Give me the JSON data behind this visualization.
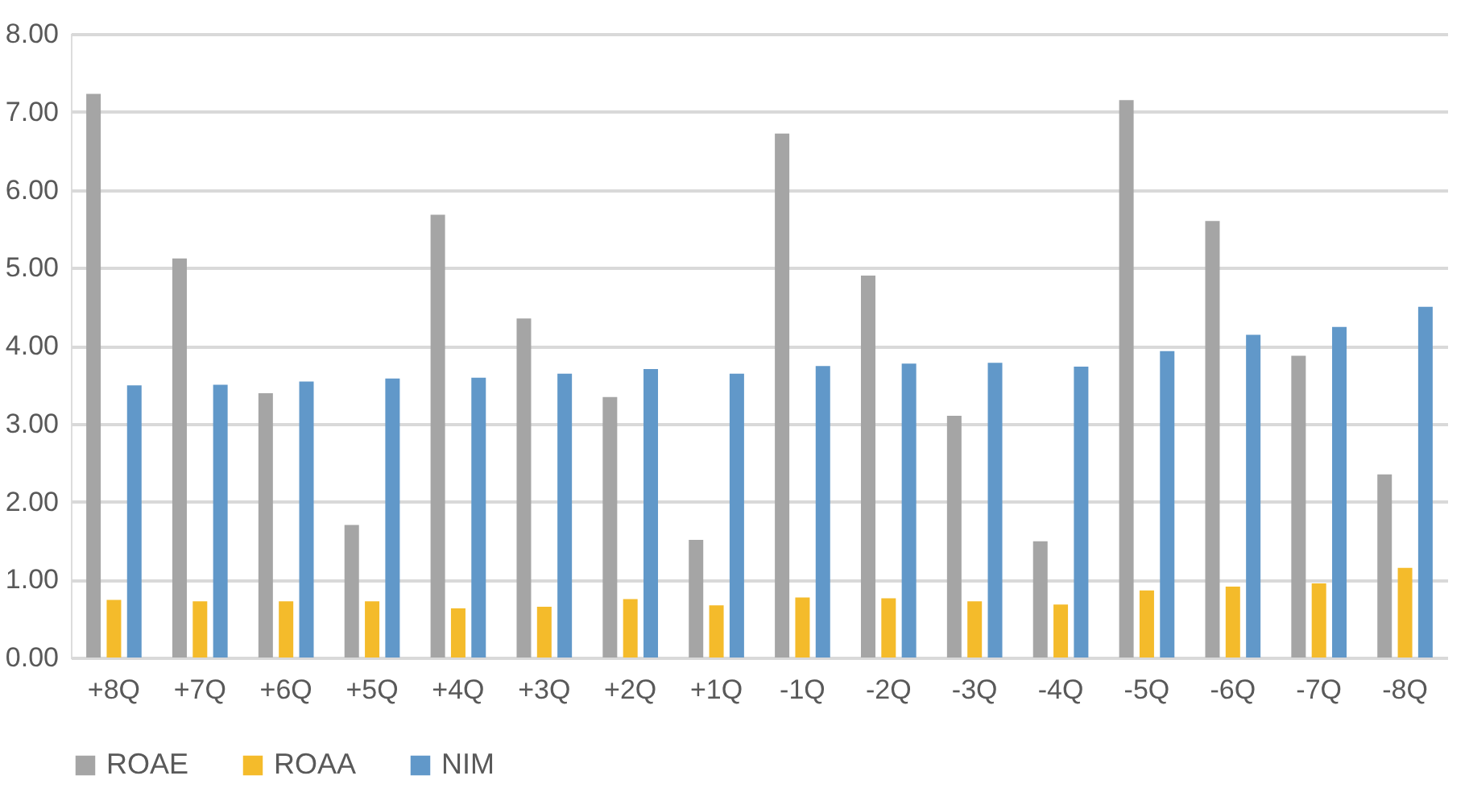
{
  "chart_data": {
    "type": "bar",
    "categories": [
      "+8Q",
      "+7Q",
      "+6Q",
      "+5Q",
      "+4Q",
      "+3Q",
      "+2Q",
      "+1Q",
      "-1Q",
      "-2Q",
      "-3Q",
      "-4Q",
      "-5Q",
      "-6Q",
      "-7Q",
      "-8Q"
    ],
    "series": [
      {
        "name": "ROAE",
        "color": "#a5a5a5",
        "values": [
          7.23,
          5.12,
          3.39,
          1.7,
          5.68,
          4.35,
          3.34,
          1.51,
          6.72,
          4.9,
          3.1,
          1.49,
          7.15,
          5.6,
          3.87,
          2.35
        ]
      },
      {
        "name": "ROAA",
        "color": "#f4bb2b",
        "values": [
          0.74,
          0.72,
          0.72,
          0.72,
          0.63,
          0.65,
          0.75,
          0.67,
          0.77,
          0.76,
          0.72,
          0.68,
          0.86,
          0.91,
          0.95,
          1.15
        ]
      },
      {
        "name": "NIM",
        "color": "#6198c9",
        "values": [
          3.49,
          3.5,
          3.54,
          3.58,
          3.59,
          3.64,
          3.7,
          3.64,
          3.74,
          3.77,
          3.78,
          3.73,
          3.93,
          4.14,
          4.24,
          4.5
        ]
      }
    ],
    "ylim": [
      0,
      8
    ],
    "yticks": [
      {
        "value": 0,
        "label": "0.00"
      },
      {
        "value": 1,
        "label": "1.00"
      },
      {
        "value": 2,
        "label": "2.00"
      },
      {
        "value": 3,
        "label": "3.00"
      },
      {
        "value": 4,
        "label": "4.00"
      },
      {
        "value": 5,
        "label": "5.00"
      },
      {
        "value": 6,
        "label": "6.00"
      },
      {
        "value": 7,
        "label": "7.00"
      },
      {
        "value": 8,
        "label": "8.00"
      }
    ],
    "grid": "y",
    "legend": "bottom"
  }
}
